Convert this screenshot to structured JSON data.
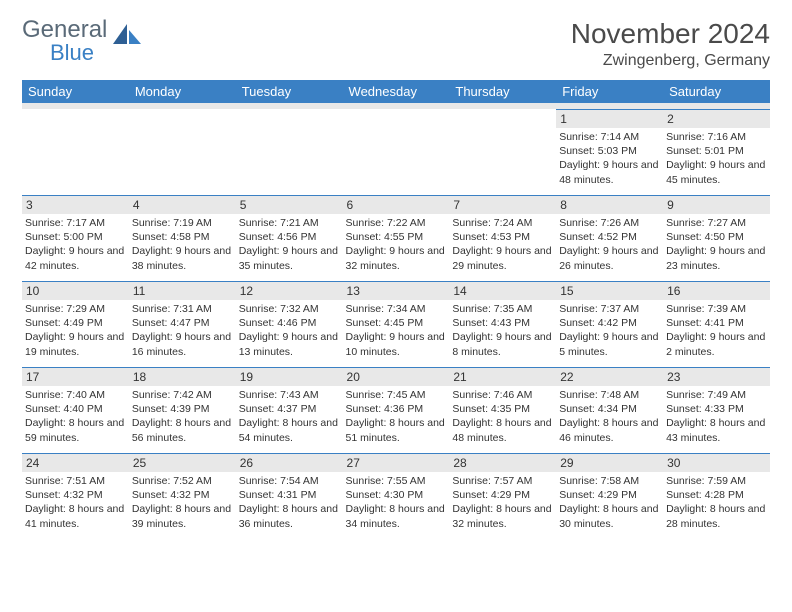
{
  "brand": {
    "word1": "General",
    "word2": "Blue"
  },
  "title": {
    "month": "November 2024",
    "location": "Zwingenberg, Germany"
  },
  "colors": {
    "header_bg": "#3a80c4",
    "header_text": "#ffffff",
    "daynum_bg": "#e8e8e8",
    "border_top": "#3a80c4",
    "logo_gray": "#5a6a78",
    "logo_blue": "#3a80c4"
  },
  "weekdays": [
    "Sunday",
    "Monday",
    "Tuesday",
    "Wednesday",
    "Thursday",
    "Friday",
    "Saturday"
  ],
  "weeks": [
    [
      null,
      null,
      null,
      null,
      null,
      {
        "n": "1",
        "sunrise": "Sunrise: 7:14 AM",
        "sunset": "Sunset: 5:03 PM",
        "daylight": "Daylight: 9 hours and 48 minutes."
      },
      {
        "n": "2",
        "sunrise": "Sunrise: 7:16 AM",
        "sunset": "Sunset: 5:01 PM",
        "daylight": "Daylight: 9 hours and 45 minutes."
      }
    ],
    [
      {
        "n": "3",
        "sunrise": "Sunrise: 7:17 AM",
        "sunset": "Sunset: 5:00 PM",
        "daylight": "Daylight: 9 hours and 42 minutes."
      },
      {
        "n": "4",
        "sunrise": "Sunrise: 7:19 AM",
        "sunset": "Sunset: 4:58 PM",
        "daylight": "Daylight: 9 hours and 38 minutes."
      },
      {
        "n": "5",
        "sunrise": "Sunrise: 7:21 AM",
        "sunset": "Sunset: 4:56 PM",
        "daylight": "Daylight: 9 hours and 35 minutes."
      },
      {
        "n": "6",
        "sunrise": "Sunrise: 7:22 AM",
        "sunset": "Sunset: 4:55 PM",
        "daylight": "Daylight: 9 hours and 32 minutes."
      },
      {
        "n": "7",
        "sunrise": "Sunrise: 7:24 AM",
        "sunset": "Sunset: 4:53 PM",
        "daylight": "Daylight: 9 hours and 29 minutes."
      },
      {
        "n": "8",
        "sunrise": "Sunrise: 7:26 AM",
        "sunset": "Sunset: 4:52 PM",
        "daylight": "Daylight: 9 hours and 26 minutes."
      },
      {
        "n": "9",
        "sunrise": "Sunrise: 7:27 AM",
        "sunset": "Sunset: 4:50 PM",
        "daylight": "Daylight: 9 hours and 23 minutes."
      }
    ],
    [
      {
        "n": "10",
        "sunrise": "Sunrise: 7:29 AM",
        "sunset": "Sunset: 4:49 PM",
        "daylight": "Daylight: 9 hours and 19 minutes."
      },
      {
        "n": "11",
        "sunrise": "Sunrise: 7:31 AM",
        "sunset": "Sunset: 4:47 PM",
        "daylight": "Daylight: 9 hours and 16 minutes."
      },
      {
        "n": "12",
        "sunrise": "Sunrise: 7:32 AM",
        "sunset": "Sunset: 4:46 PM",
        "daylight": "Daylight: 9 hours and 13 minutes."
      },
      {
        "n": "13",
        "sunrise": "Sunrise: 7:34 AM",
        "sunset": "Sunset: 4:45 PM",
        "daylight": "Daylight: 9 hours and 10 minutes."
      },
      {
        "n": "14",
        "sunrise": "Sunrise: 7:35 AM",
        "sunset": "Sunset: 4:43 PM",
        "daylight": "Daylight: 9 hours and 8 minutes."
      },
      {
        "n": "15",
        "sunrise": "Sunrise: 7:37 AM",
        "sunset": "Sunset: 4:42 PM",
        "daylight": "Daylight: 9 hours and 5 minutes."
      },
      {
        "n": "16",
        "sunrise": "Sunrise: 7:39 AM",
        "sunset": "Sunset: 4:41 PM",
        "daylight": "Daylight: 9 hours and 2 minutes."
      }
    ],
    [
      {
        "n": "17",
        "sunrise": "Sunrise: 7:40 AM",
        "sunset": "Sunset: 4:40 PM",
        "daylight": "Daylight: 8 hours and 59 minutes."
      },
      {
        "n": "18",
        "sunrise": "Sunrise: 7:42 AM",
        "sunset": "Sunset: 4:39 PM",
        "daylight": "Daylight: 8 hours and 56 minutes."
      },
      {
        "n": "19",
        "sunrise": "Sunrise: 7:43 AM",
        "sunset": "Sunset: 4:37 PM",
        "daylight": "Daylight: 8 hours and 54 minutes."
      },
      {
        "n": "20",
        "sunrise": "Sunrise: 7:45 AM",
        "sunset": "Sunset: 4:36 PM",
        "daylight": "Daylight: 8 hours and 51 minutes."
      },
      {
        "n": "21",
        "sunrise": "Sunrise: 7:46 AM",
        "sunset": "Sunset: 4:35 PM",
        "daylight": "Daylight: 8 hours and 48 minutes."
      },
      {
        "n": "22",
        "sunrise": "Sunrise: 7:48 AM",
        "sunset": "Sunset: 4:34 PM",
        "daylight": "Daylight: 8 hours and 46 minutes."
      },
      {
        "n": "23",
        "sunrise": "Sunrise: 7:49 AM",
        "sunset": "Sunset: 4:33 PM",
        "daylight": "Daylight: 8 hours and 43 minutes."
      }
    ],
    [
      {
        "n": "24",
        "sunrise": "Sunrise: 7:51 AM",
        "sunset": "Sunset: 4:32 PM",
        "daylight": "Daylight: 8 hours and 41 minutes."
      },
      {
        "n": "25",
        "sunrise": "Sunrise: 7:52 AM",
        "sunset": "Sunset: 4:32 PM",
        "daylight": "Daylight: 8 hours and 39 minutes."
      },
      {
        "n": "26",
        "sunrise": "Sunrise: 7:54 AM",
        "sunset": "Sunset: 4:31 PM",
        "daylight": "Daylight: 8 hours and 36 minutes."
      },
      {
        "n": "27",
        "sunrise": "Sunrise: 7:55 AM",
        "sunset": "Sunset: 4:30 PM",
        "daylight": "Daylight: 8 hours and 34 minutes."
      },
      {
        "n": "28",
        "sunrise": "Sunrise: 7:57 AM",
        "sunset": "Sunset: 4:29 PM",
        "daylight": "Daylight: 8 hours and 32 minutes."
      },
      {
        "n": "29",
        "sunrise": "Sunrise: 7:58 AM",
        "sunset": "Sunset: 4:29 PM",
        "daylight": "Daylight: 8 hours and 30 minutes."
      },
      {
        "n": "30",
        "sunrise": "Sunrise: 7:59 AM",
        "sunset": "Sunset: 4:28 PM",
        "daylight": "Daylight: 8 hours and 28 minutes."
      }
    ]
  ]
}
